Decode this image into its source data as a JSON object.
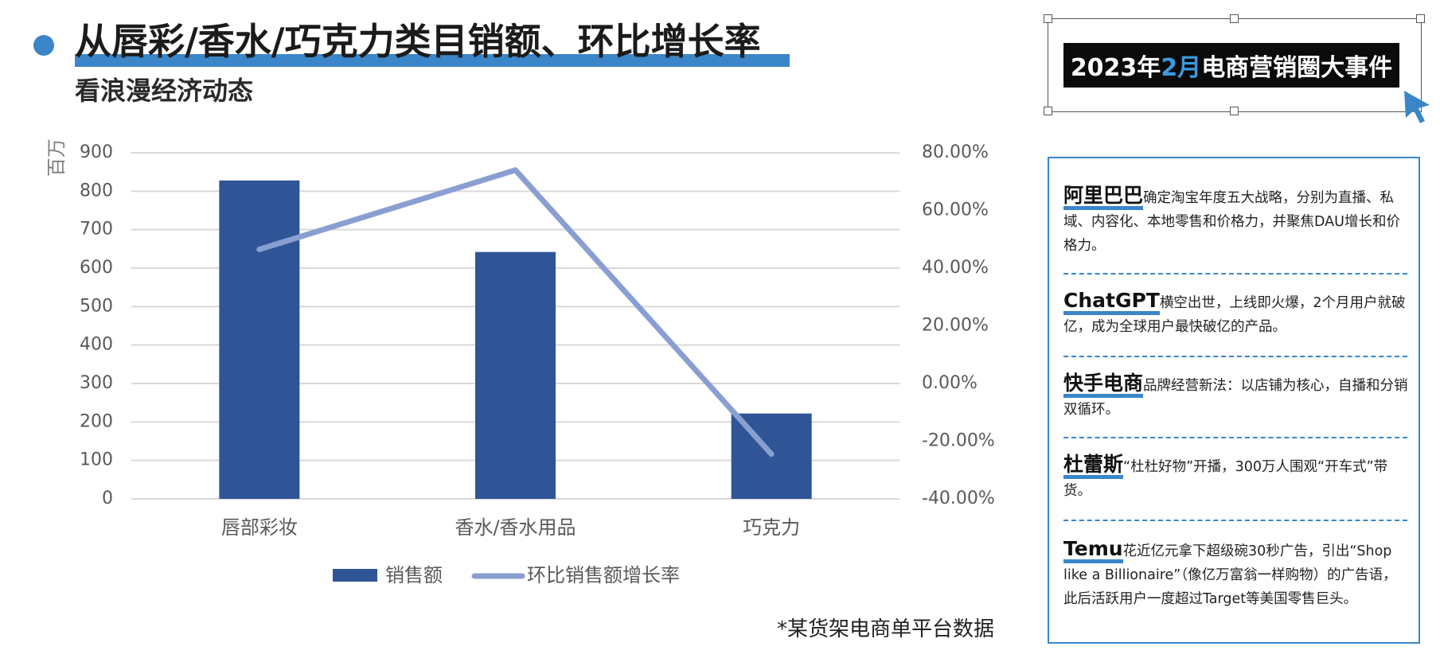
{
  "header": {
    "title": "从唇彩/香水/巧克力类目销额、环比增长率",
    "subtitle": "看浪漫经济动态"
  },
  "footnote": "*某货架电商单平台数据",
  "colors": {
    "accent": "#3a86c8",
    "bar": "#2f5597",
    "line": "#8a9fd1",
    "grid": "#d9d9d9",
    "axis_text": "#595959"
  },
  "chart_data": {
    "type": "bar",
    "categories": [
      "唇部彩妆",
      "香水/香水用品",
      "巧克力"
    ],
    "ylabel": "百万",
    "ylim": [
      0,
      900
    ],
    "y_ticks": [
      "900",
      "800",
      "700",
      "600",
      "500",
      "400",
      "300",
      "200",
      "100",
      "0"
    ],
    "y2lim": [
      -0.4,
      0.8
    ],
    "y2_ticks": [
      "80.00%",
      "60.00%",
      "40.00%",
      "20.00%",
      "0.00%",
      "-20.00%",
      "-40.00%"
    ],
    "grid": true,
    "legend_position": "bottom",
    "series": [
      {
        "name": "销售额",
        "type": "bar",
        "axis": "left",
        "values": [
          828,
          642,
          222
        ]
      },
      {
        "name": "环比销售额增长率",
        "type": "line",
        "axis": "right",
        "values": [
          0.465,
          0.74,
          -0.245
        ]
      }
    ]
  },
  "side_panel": {
    "badge": {
      "prefix": "2023年",
      "highlight": "2月",
      "suffix": "电商营销圈大事件"
    },
    "events": [
      {
        "name": "阿里巴巴",
        "text": "确定淘宝年度五大战略，分别为直播、私域、内容化、本地零售和价格力，并聚焦DAU增长和价格力。"
      },
      {
        "name": "ChatGPT",
        "text": "横空出世，上线即火爆，2个月用户就破亿，成为全球用户最快破亿的产品。"
      },
      {
        "name": "快手电商",
        "text": "品牌经营新法：以店铺为核心，自播和分销双循环。"
      },
      {
        "name": "杜蕾斯",
        "text": "“杜杜好物”开播，300万人围观“开车式”带货。"
      },
      {
        "name": "Temu",
        "text": "花近亿元拿下超级碗30秒广告，引出“Shop like a Billionaire”（像亿万富翁一样购物）的广告语，此后活跃用户一度超过Target等美国零售巨头。"
      }
    ]
  }
}
